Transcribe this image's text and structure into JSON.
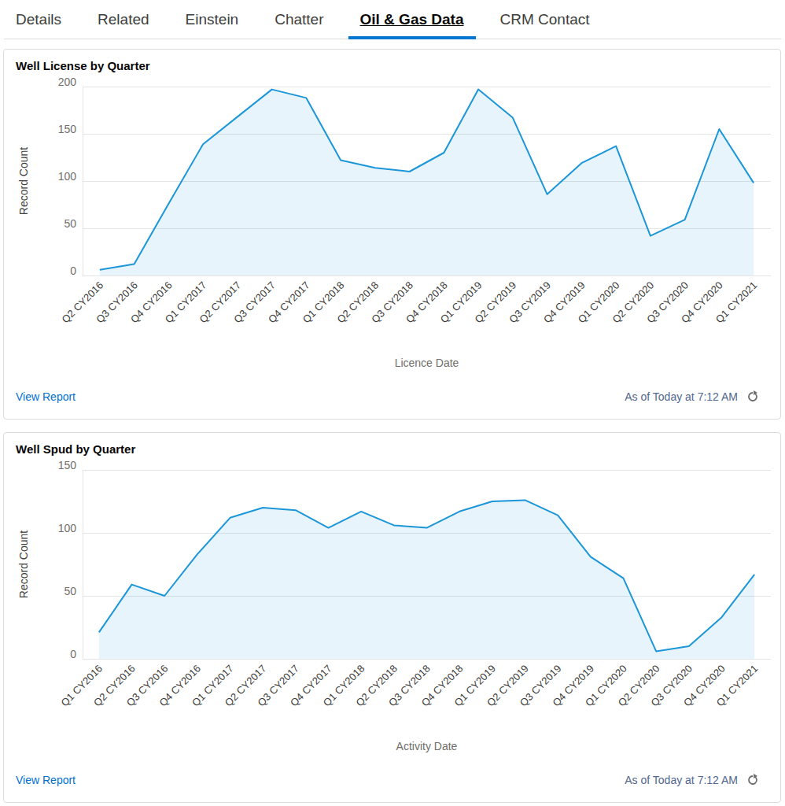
{
  "tabs": [
    {
      "label": "Details"
    },
    {
      "label": "Related"
    },
    {
      "label": "Einstein"
    },
    {
      "label": "Chatter"
    },
    {
      "label": "Oil & Gas Data",
      "active": true
    },
    {
      "label": "CRM Contact"
    }
  ],
  "cards": [
    {
      "link": "View Report",
      "timestamp": "As of Today at 7:12 AM"
    },
    {
      "link": "View Report",
      "timestamp": "As of Today at 7:12 AM"
    }
  ],
  "chart_data": [
    {
      "type": "area",
      "title": "Well License by Quarter",
      "x_label": "Licence Date",
      "y_label": "Record Count",
      "categories": [
        "Q2 CY2016",
        "Q3 CY2016",
        "Q4 CY2016",
        "Q1 CY2017",
        "Q2 CY2017",
        "Q3 CY2017",
        "Q4 CY2017",
        "Q1 CY2018",
        "Q2 CY2018",
        "Q3 CY2018",
        "Q4 CY2018",
        "Q1 CY2019",
        "Q2 CY2019",
        "Q3 CY2019",
        "Q4 CY2019",
        "Q1 CY2020",
        "Q2 CY2020",
        "Q3 CY2020",
        "Q4 CY2020",
        "Q1 CY2021"
      ],
      "values": [
        6,
        12,
        76,
        139,
        168,
        197,
        188,
        122,
        114,
        110,
        130,
        197,
        167,
        86,
        119,
        137,
        42,
        59,
        155,
        98
      ],
      "color": "#1b96d9",
      "ylim": [
        0,
        200
      ],
      "yticks": [
        0,
        50,
        100,
        150,
        200
      ],
      "grid": true
    },
    {
      "type": "area",
      "title": "Well Spud by Quarter",
      "x_label": "Activity Date",
      "y_label": "Record Count",
      "categories": [
        "Q1 CY2016",
        "Q2 CY2016",
        "Q3 CY2016",
        "Q4 CY2016",
        "Q1 CY2017",
        "Q2 CY2017",
        "Q3 CY2017",
        "Q4 CY2017",
        "Q1 CY2018",
        "Q2 CY2018",
        "Q3 CY2018",
        "Q4 CY2018",
        "Q1 CY2019",
        "Q2 CY2019",
        "Q3 CY2019",
        "Q4 CY2019",
        "Q1 CY2020",
        "Q2 CY2020",
        "Q3 CY2020",
        "Q4 CY2020",
        "Q1 CY2021"
      ],
      "values": [
        21,
        59,
        50,
        83,
        112,
        120,
        118,
        104,
        117,
        106,
        104,
        117,
        125,
        126,
        114,
        81,
        64,
        6,
        10,
        33,
        67
      ],
      "color": "#1b96d9",
      "ylim": [
        0,
        150
      ],
      "yticks": [
        0,
        50,
        100,
        150
      ],
      "grid": true
    }
  ]
}
